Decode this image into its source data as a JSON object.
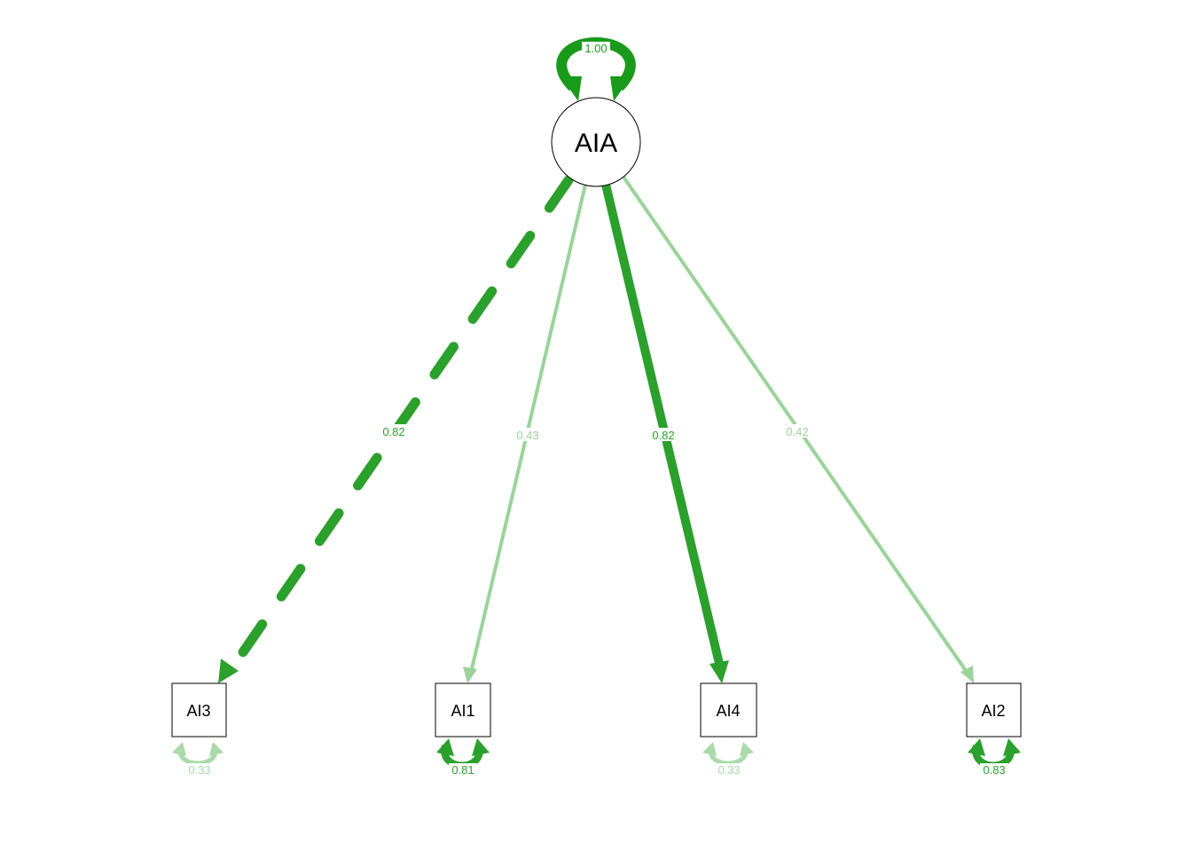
{
  "colors": {
    "strong": "#2ca02c",
    "stronger": "#1a9a1a",
    "light": "#9bd39b",
    "lighter": "#aadaaa",
    "node_stroke": "#000000"
  },
  "latent": {
    "label": "AIA",
    "variance_label": "1.00"
  },
  "indicators": [
    {
      "id": "AI3",
      "label": "AI3",
      "variance_label": "0.33"
    },
    {
      "id": "AI1",
      "label": "AI1",
      "variance_label": "0.81"
    },
    {
      "id": "AI4",
      "label": "AI4",
      "variance_label": "0.33"
    },
    {
      "id": "AI2",
      "label": "AI2",
      "variance_label": "0.83"
    }
  ],
  "loadings": [
    {
      "to": "AI3",
      "label": "0.82",
      "style": "dashed",
      "strength": "strong"
    },
    {
      "to": "AI1",
      "label": "0.43",
      "style": "solid",
      "strength": "light"
    },
    {
      "to": "AI4",
      "label": "0.82",
      "style": "solid",
      "strength": "strong"
    },
    {
      "to": "AI2",
      "label": "0.42",
      "style": "solid",
      "strength": "light"
    }
  ]
}
